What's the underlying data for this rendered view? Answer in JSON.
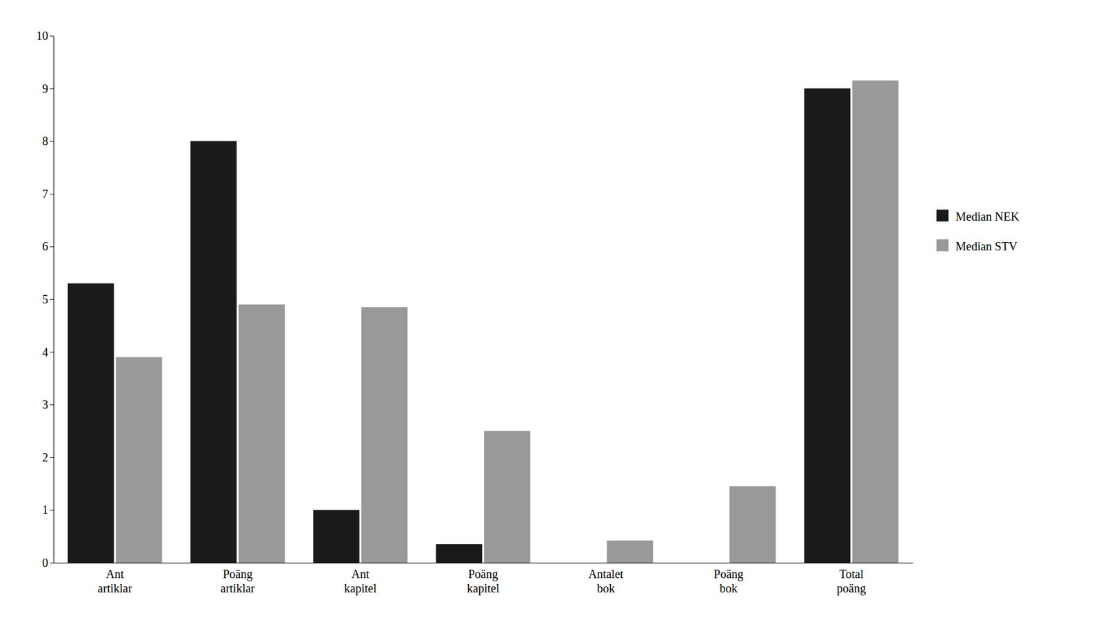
{
  "chart_data": {
    "type": "bar",
    "categories": [
      "Ant\nartiklar",
      "Poäng\nartiklar",
      "Ant\nkapitel",
      "Poäng\nkapitel",
      "Antalet\nbok",
      "Poäng\nbok",
      "Total\npoäng"
    ],
    "series": [
      {
        "name": "Median NEK",
        "color": "#1a1a1a",
        "values": [
          5.3,
          8.0,
          1.0,
          0.35,
          0.0,
          0.0,
          9.0
        ]
      },
      {
        "name": "Median STV",
        "color": "#999999",
        "values": [
          3.9,
          4.9,
          4.85,
          2.5,
          0.42,
          1.45,
          9.15
        ]
      }
    ],
    "ylim": [
      0,
      10
    ],
    "yticks": [
      0,
      1,
      2,
      3,
      4,
      5,
      6,
      7,
      8,
      9,
      10
    ],
    "grid": false,
    "legend": "right"
  }
}
